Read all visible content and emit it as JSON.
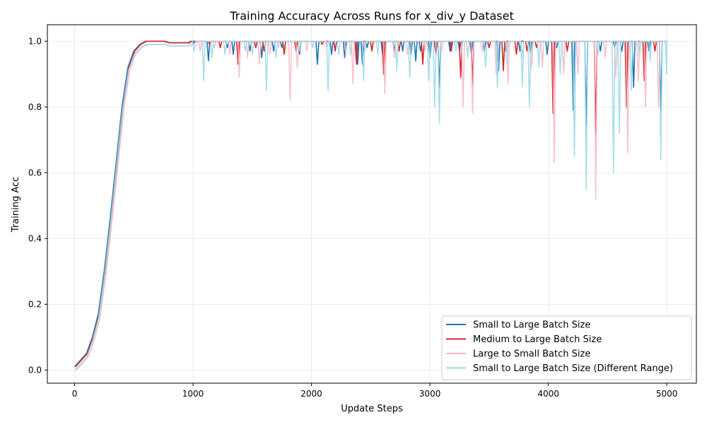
{
  "chart_data": {
    "type": "line",
    "title": "Training Accuracy Across Runs for x_div_y Dataset",
    "xlabel": "Update Steps",
    "ylabel": "Training Acc",
    "xlim": [
      -230,
      5250
    ],
    "ylim": [
      -0.04,
      1.05
    ],
    "xticks": [
      0,
      1000,
      2000,
      3000,
      4000,
      5000
    ],
    "yticks": [
      0.0,
      0.2,
      0.4,
      0.6,
      0.8,
      1.0
    ],
    "xtick_labels": [
      "0",
      "1000",
      "2000",
      "3000",
      "4000",
      "5000"
    ],
    "ytick_labels": [
      "0.0",
      "0.2",
      "0.4",
      "0.6",
      "0.8",
      "1.0"
    ],
    "grid": true,
    "legend_position": "bottom-right",
    "legend": [
      "Small to Large Batch Size",
      "Medium to Large Batch Size",
      "Large to Small Batch Size",
      "Small to Large Batch Size (Different Range)"
    ],
    "rise": {
      "x": [
        0,
        50,
        100,
        150,
        200,
        250,
        300,
        350,
        400,
        450,
        500,
        550,
        600,
        650,
        700,
        750,
        800,
        850,
        900,
        950,
        1000
      ],
      "y": [
        0.01,
        0.03,
        0.05,
        0.1,
        0.17,
        0.3,
        0.46,
        0.63,
        0.8,
        0.92,
        0.97,
        0.99,
        1.0,
        1.0,
        1.0,
        1.0,
        0.995,
        0.995,
        0.995,
        0.995,
        1.0
      ]
    },
    "series": [
      {
        "name": "Small to Large Batch Size",
        "color": "#1f77b4",
        "opacity": 1.0,
        "baseline": 1.0,
        "dips": [
          [
            1000,
            0.99
          ],
          [
            1130,
            0.94
          ],
          [
            1290,
            0.98
          ],
          [
            1340,
            0.96
          ],
          [
            1480,
            0.97
          ],
          [
            1580,
            0.95
          ],
          [
            1680,
            0.97
          ],
          [
            1750,
            0.98
          ],
          [
            1900,
            0.96
          ],
          [
            2050,
            0.93
          ],
          [
            2170,
            0.96
          ],
          [
            2280,
            0.95
          ],
          [
            2390,
            0.93
          ],
          [
            2430,
            0.93
          ],
          [
            2470,
            0.98
          ],
          [
            2600,
            0.96
          ],
          [
            2700,
            0.97
          ],
          [
            2770,
            0.97
          ],
          [
            2840,
            0.96
          ],
          [
            2880,
            0.94
          ],
          [
            2920,
            0.97
          ],
          [
            3000,
            0.95
          ],
          [
            3080,
            0.86
          ],
          [
            3170,
            0.97
          ],
          [
            3250,
            0.97
          ],
          [
            3350,
            0.96
          ],
          [
            3460,
            0.97
          ],
          [
            3580,
            0.91
          ],
          [
            3640,
            0.97
          ],
          [
            3760,
            0.97
          ],
          [
            3850,
            0.96
          ],
          [
            3990,
            0.96
          ],
          [
            4070,
            0.98
          ],
          [
            4210,
            0.79
          ],
          [
            4320,
            0.74
          ],
          [
            4440,
            0.97
          ],
          [
            4560,
            0.98
          ],
          [
            4620,
            0.97
          ],
          [
            4720,
            0.86
          ],
          [
            4850,
            0.97
          ],
          [
            4950,
            0.79
          ]
        ]
      },
      {
        "name": "Medium to Large Batch Size",
        "color": "#d62728",
        "opacity": 1.0,
        "baseline": 1.0,
        "dips": [
          [
            1140,
            0.99
          ],
          [
            1230,
            0.98
          ],
          [
            1380,
            0.93
          ],
          [
            1530,
            0.98
          ],
          [
            1600,
            0.97
          ],
          [
            1770,
            0.96
          ],
          [
            1870,
            0.97
          ],
          [
            2090,
            0.99
          ],
          [
            2200,
            0.97
          ],
          [
            2380,
            0.93
          ],
          [
            2510,
            0.97
          ],
          [
            2610,
            0.9
          ],
          [
            2740,
            0.97
          ],
          [
            2940,
            0.93
          ],
          [
            3050,
            0.96
          ],
          [
            3180,
            0.97
          ],
          [
            3260,
            0.89
          ],
          [
            3360,
            0.87
          ],
          [
            3500,
            0.98
          ],
          [
            3620,
            0.91
          ],
          [
            3730,
            0.96
          ],
          [
            3820,
            0.97
          ],
          [
            3900,
            0.98
          ],
          [
            4040,
            0.78
          ],
          [
            4160,
            0.97
          ],
          [
            4400,
            0.72
          ],
          [
            4660,
            0.8
          ],
          [
            4810,
            0.88
          ],
          [
            4900,
            0.97
          ]
        ]
      },
      {
        "name": "Large to Small Batch Size",
        "color": "#f7b6c8",
        "opacity": 0.85,
        "baseline": 1.0,
        "dips": [
          [
            1060,
            0.97
          ],
          [
            1180,
            0.98
          ],
          [
            1310,
            0.96
          ],
          [
            1390,
            0.89
          ],
          [
            1460,
            0.95
          ],
          [
            1560,
            0.93
          ],
          [
            1650,
            0.96
          ],
          [
            1720,
            0.98
          ],
          [
            1820,
            0.82
          ],
          [
            1880,
            0.92
          ],
          [
            1960,
            0.97
          ],
          [
            2130,
            0.98
          ],
          [
            2290,
            0.96
          ],
          [
            2350,
            0.87
          ],
          [
            2450,
            0.97
          ],
          [
            2620,
            0.84
          ],
          [
            2700,
            0.95
          ],
          [
            2810,
            0.96
          ],
          [
            2960,
            0.97
          ],
          [
            3100,
            0.97
          ],
          [
            3280,
            0.8
          ],
          [
            3360,
            0.78
          ],
          [
            3440,
            0.97
          ],
          [
            3560,
            0.9
          ],
          [
            3660,
            0.87
          ],
          [
            3780,
            0.95
          ],
          [
            3860,
            0.92
          ],
          [
            3950,
            0.92
          ],
          [
            4050,
            0.63
          ],
          [
            4130,
            0.9
          ],
          [
            4250,
            0.9
          ],
          [
            4400,
            0.52
          ],
          [
            4480,
            0.95
          ],
          [
            4570,
            0.89
          ],
          [
            4670,
            0.66
          ],
          [
            4760,
            0.88
          ],
          [
            4820,
            0.8
          ],
          [
            4930,
            0.8
          ]
        ]
      },
      {
        "name": "Small to Large Batch Size (Different Range)",
        "color": "#9edae5",
        "opacity": 0.9,
        "baseline": 1.0,
        "dips": [
          [
            1010,
            0.97
          ],
          [
            1090,
            0.88
          ],
          [
            1160,
            0.95
          ],
          [
            1270,
            0.96
          ],
          [
            1440,
            0.97
          ],
          [
            1500,
            0.96
          ],
          [
            1620,
            0.85
          ],
          [
            1700,
            0.95
          ],
          [
            1900,
            0.97
          ],
          [
            2010,
            0.98
          ],
          [
            2140,
            0.85
          ],
          [
            2230,
            0.96
          ],
          [
            2330,
            0.96
          ],
          [
            2440,
            0.88
          ],
          [
            2560,
            0.96
          ],
          [
            2720,
            0.91
          ],
          [
            2830,
            0.89
          ],
          [
            2990,
            0.88
          ],
          [
            3040,
            0.8
          ],
          [
            3080,
            0.75
          ],
          [
            3220,
            0.97
          ],
          [
            3320,
            0.95
          ],
          [
            3470,
            0.92
          ],
          [
            3570,
            0.86
          ],
          [
            3650,
            0.93
          ],
          [
            3780,
            0.86
          ],
          [
            3840,
            0.8
          ],
          [
            3920,
            0.92
          ],
          [
            4100,
            0.9
          ],
          [
            4220,
            0.65
          ],
          [
            4320,
            0.55
          ],
          [
            4420,
            0.96
          ],
          [
            4550,
            0.6
          ],
          [
            4600,
            0.72
          ],
          [
            4700,
            0.85
          ],
          [
            4770,
            0.96
          ],
          [
            4860,
            0.94
          ],
          [
            4950,
            0.64
          ],
          [
            5000,
            0.9
          ]
        ]
      }
    ]
  }
}
